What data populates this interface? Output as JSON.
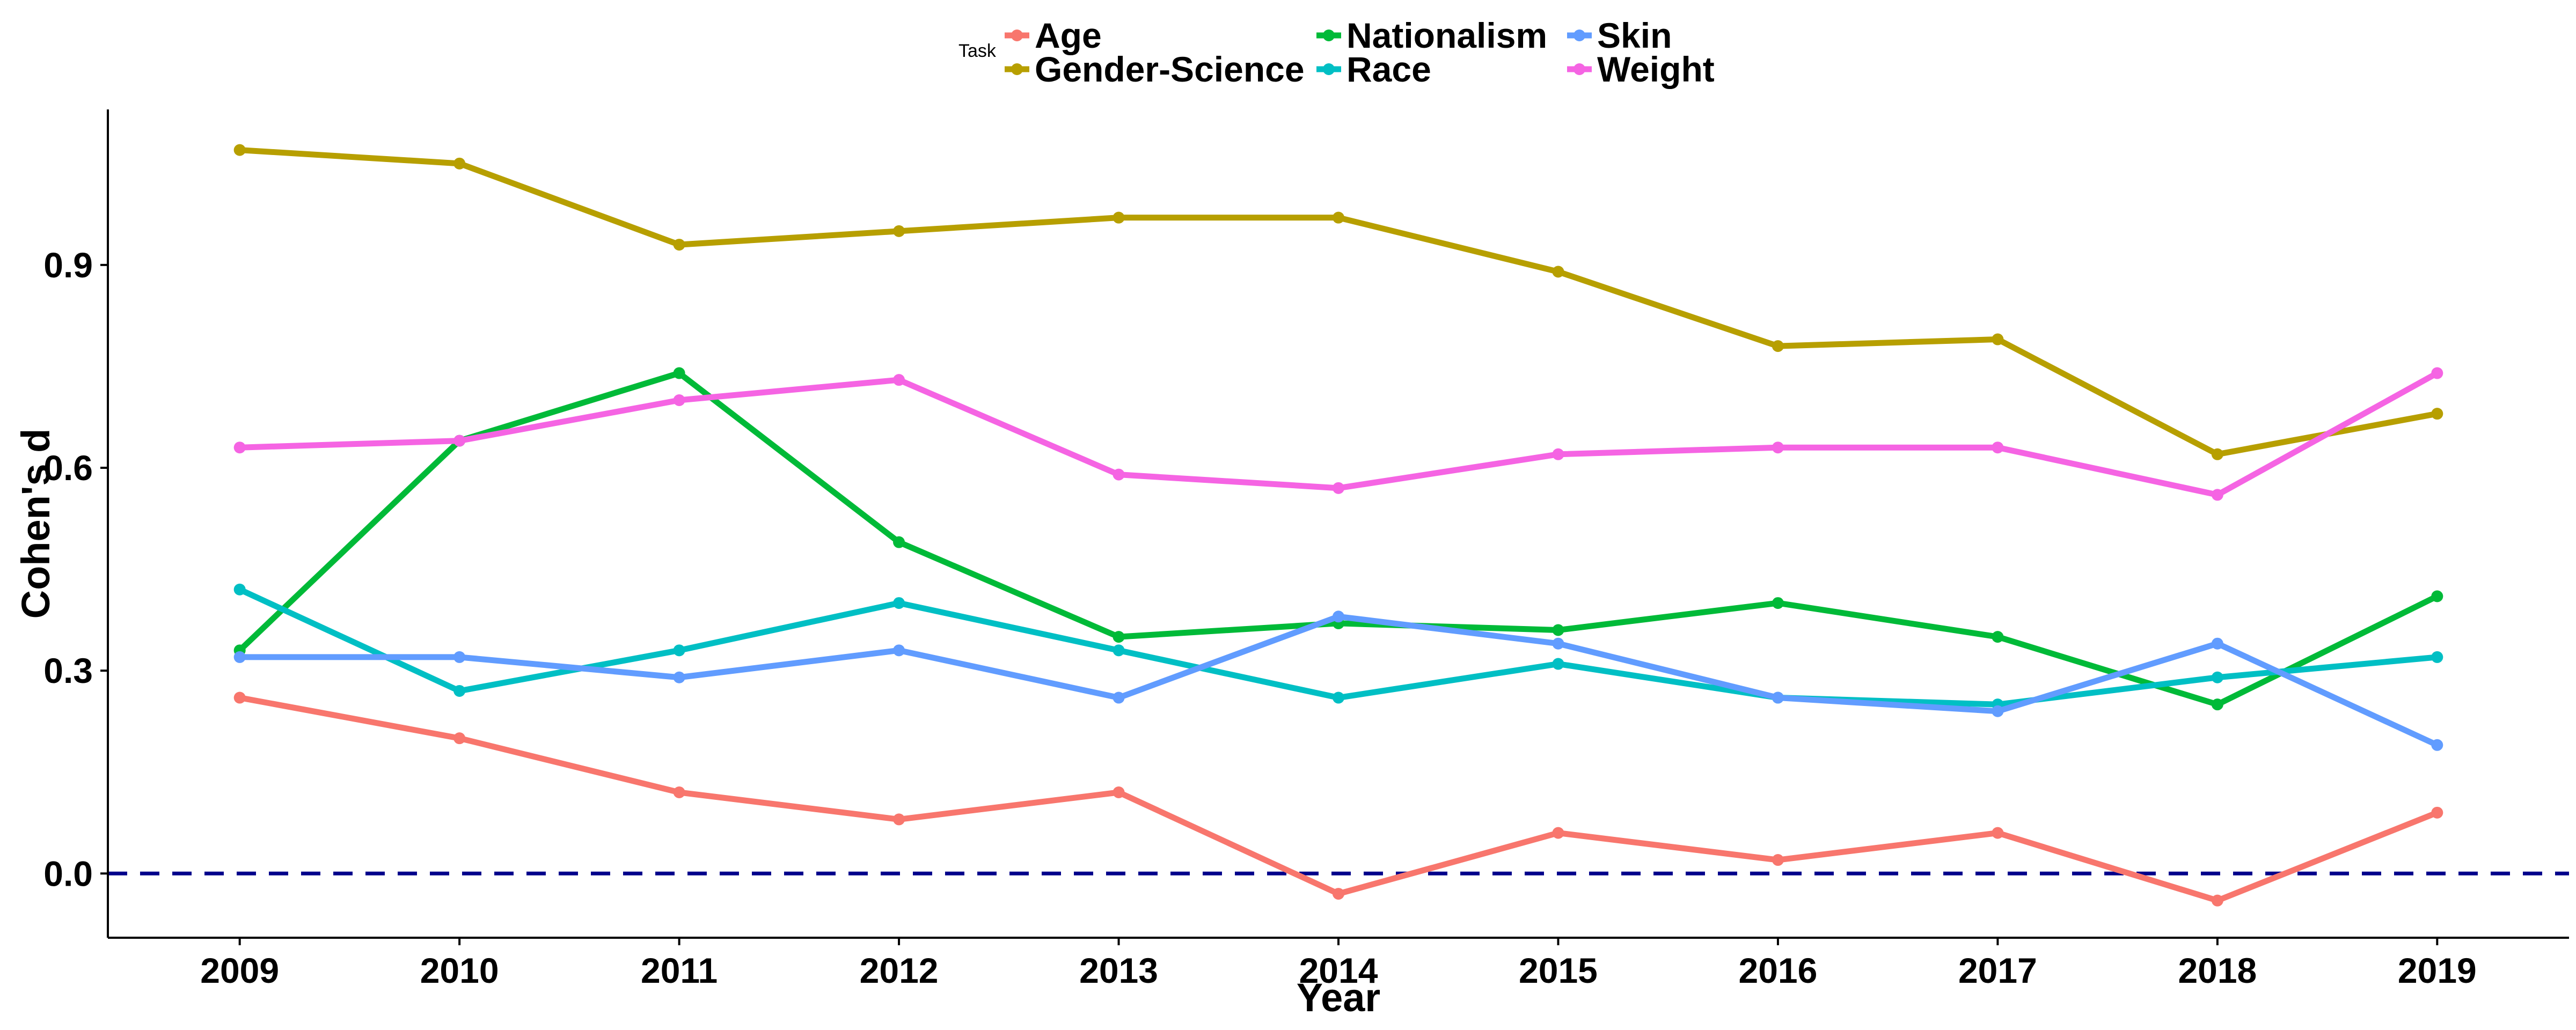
{
  "chart_data": {
    "type": "line",
    "xlabel": "Year",
    "ylabel": "Cohen's d",
    "x": [
      2009,
      2010,
      2011,
      2012,
      2013,
      2014,
      2015,
      2016,
      2017,
      2018,
      2019
    ],
    "xlim": [
      2008.4,
      2019.6
    ],
    "ylim": [
      -0.095,
      1.13
    ],
    "yticks": [
      0.0,
      0.3,
      0.6,
      0.9
    ],
    "ytick_labels": [
      "0.0",
      "0.3",
      "0.6",
      "0.9"
    ],
    "reference_line": {
      "y": 0.0,
      "style": "dashed",
      "color": "#00008B"
    },
    "legend": {
      "title": "Task",
      "placement": "top"
    },
    "grid": false,
    "series": [
      {
        "name": "Age",
        "color": "#F8766D",
        "values": [
          0.26,
          0.2,
          0.12,
          0.08,
          0.12,
          -0.03,
          0.06,
          0.02,
          0.06,
          -0.04,
          0.09
        ]
      },
      {
        "name": "Gender-Science",
        "color": "#B79F00",
        "values": [
          1.07,
          1.05,
          0.93,
          0.95,
          0.97,
          0.97,
          0.89,
          0.78,
          0.79,
          0.62,
          0.68
        ]
      },
      {
        "name": "Nationalism",
        "color": "#00BA38",
        "values": [
          0.33,
          0.64,
          0.74,
          0.49,
          0.35,
          0.37,
          0.36,
          0.4,
          0.35,
          0.25,
          0.41
        ]
      },
      {
        "name": "Race",
        "color": "#00BFC4",
        "values": [
          0.42,
          0.27,
          0.33,
          0.4,
          0.33,
          0.26,
          0.31,
          0.26,
          0.25,
          0.29,
          0.32
        ]
      },
      {
        "name": "Skin",
        "color": "#619CFF",
        "values": [
          0.32,
          0.32,
          0.29,
          0.33,
          0.26,
          0.38,
          0.34,
          0.26,
          0.24,
          0.34,
          0.19
        ]
      },
      {
        "name": "Weight",
        "color": "#F564E3",
        "values": [
          0.63,
          0.64,
          0.7,
          0.73,
          0.59,
          0.57,
          0.62,
          0.63,
          0.63,
          0.56,
          0.74
        ]
      }
    ]
  }
}
